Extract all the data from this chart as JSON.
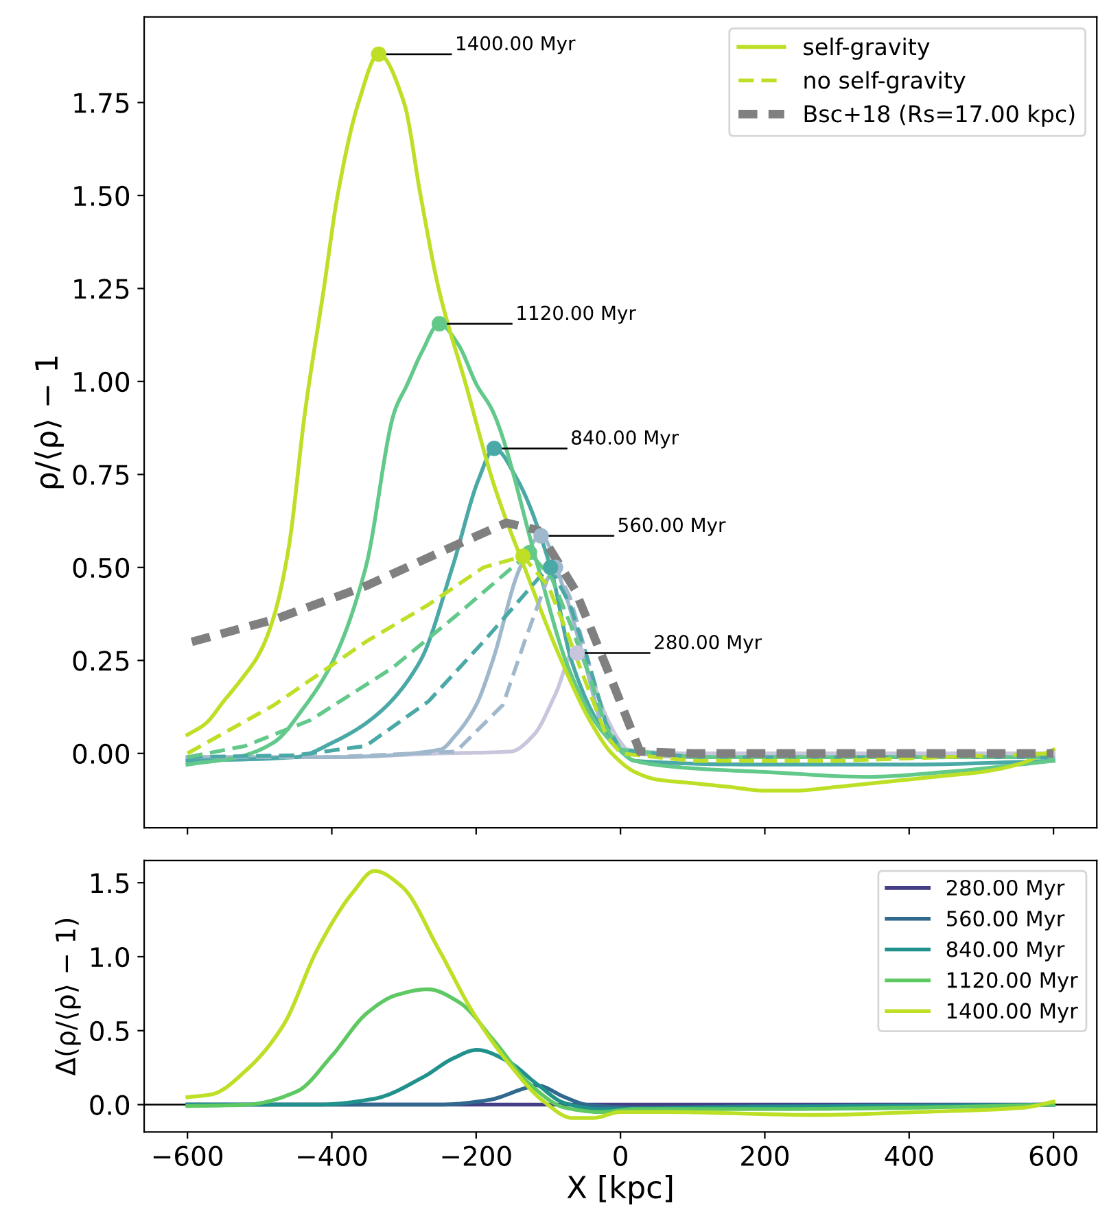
{
  "chart_data": [
    {
      "type": "line",
      "ylabel": "ρ/⟨ρ⟩ − 1",
      "xlim": [
        -660,
        660
      ],
      "ylim": [
        -0.2,
        1.98
      ],
      "xticks": [
        {
          "value": -600,
          "label": null
        },
        {
          "value": -400,
          "label": null
        },
        {
          "value": -200,
          "label": null
        },
        {
          "value": 0,
          "label": null
        },
        {
          "value": 200,
          "label": null
        },
        {
          "value": 400,
          "label": null
        },
        {
          "value": 600,
          "label": null
        }
      ],
      "yticks": [
        {
          "value": 0,
          "label": "0.00"
        },
        {
          "value": 0.25,
          "label": "0.25"
        },
        {
          "value": 0.5,
          "label": "0.50"
        },
        {
          "value": 0.75,
          "label": "0.75"
        },
        {
          "value": 1,
          "label": "1.00"
        },
        {
          "value": 1.25,
          "label": "1.25"
        },
        {
          "value": 1.5,
          "label": "1.50"
        },
        {
          "value": 1.75,
          "label": "1.75"
        }
      ],
      "tick_labels": "y",
      "grid": false,
      "legend": "top right",
      "marker": "none",
      "series": [
        {
          "color": "#c8c6dc",
          "line_style": "solid",
          "x": [
            -600,
            -400,
            -250,
            -152,
            -120,
            -90,
            -63,
            -40,
            -20,
            0,
            10,
            100,
            300,
            600
          ],
          "values": [
            -0.01,
            -0.01,
            0.0,
            0.005,
            0.05,
            0.16,
            0.28,
            0.2,
            0.1,
            0.03,
            0.01,
            0.0,
            0.0,
            0.0
          ]
        },
        {
          "color": "#a0b8cc",
          "line_style": "solid",
          "x": [
            -600,
            -400,
            -250,
            -228,
            -200,
            -177,
            -139,
            -110,
            -80,
            -50,
            -20,
            0,
            100,
            300,
            600
          ],
          "values": [
            -0.01,
            -0.01,
            0.01,
            0.05,
            0.13,
            0.25,
            0.5,
            0.585,
            0.45,
            0.25,
            0.05,
            0.01,
            -0.01,
            -0.01,
            -0.01
          ]
        },
        {
          "color": "#4aa9a6",
          "line_style": "solid",
          "x": [
            -600,
            -450,
            -398,
            -340,
            -277,
            -233,
            -196,
            -175,
            -144,
            -97,
            -68,
            -30,
            -9,
            20,
            200,
            400,
            600
          ],
          "values": [
            -0.02,
            -0.01,
            0.03,
            0.1,
            0.25,
            0.5,
            0.74,
            0.82,
            0.74,
            0.5,
            0.25,
            0.08,
            0.03,
            -0.02,
            -0.03,
            -0.03,
            -0.02
          ]
        },
        {
          "color": "#62c98a",
          "line_style": "solid",
          "x": [
            -600,
            -530,
            -480,
            -440,
            -398,
            -353,
            -313,
            -296,
            -275,
            -251,
            -225,
            -199,
            -177,
            -114,
            -76,
            -40,
            -12,
            20,
            100,
            200,
            342,
            450,
            600
          ],
          "values": [
            -0.03,
            -0.01,
            0.03,
            0.12,
            0.25,
            0.5,
            0.92,
            0.99,
            1.08,
            1.155,
            1.1,
            0.99,
            0.92,
            0.5,
            0.25,
            0.1,
            0.03,
            -0.02,
            -0.04,
            -0.05,
            -0.063,
            -0.05,
            -0.02
          ]
        },
        {
          "name": "self-gravity",
          "color": "#bddf26",
          "line_style": "solid",
          "x": [
            -600,
            -575,
            -550,
            -525,
            -500,
            -480,
            -460,
            -437,
            -411,
            -392,
            -363,
            -335,
            -300,
            -277,
            -252,
            -214,
            -175,
            -133,
            -82,
            -40,
            -12,
            20,
            50,
            100,
            150,
            200,
            241,
            300,
            350,
            400,
            450,
            500,
            550,
            600
          ],
          "values": [
            0.05,
            0.08,
            0.14,
            0.2,
            0.27,
            0.37,
            0.55,
            0.92,
            1.25,
            1.5,
            1.75,
            1.88,
            1.75,
            1.5,
            1.25,
            0.99,
            0.72,
            0.5,
            0.25,
            0.08,
            0.0,
            -0.05,
            -0.07,
            -0.08,
            -0.09,
            -0.1,
            -0.1,
            -0.09,
            -0.08,
            -0.07,
            -0.06,
            -0.05,
            -0.03,
            0.01
          ]
        },
        {
          "color": "#a0b8cc",
          "line_style": "dashed",
          "x": [
            -600,
            -400,
            -228,
            -163,
            -133,
            -101,
            -90,
            -70,
            -45,
            -20,
            0,
            100,
            300,
            600
          ],
          "values": [
            -0.01,
            -0.01,
            0.005,
            0.13,
            0.3,
            0.47,
            0.5,
            0.42,
            0.25,
            0.08,
            0.01,
            -0.01,
            -0.01,
            -0.01
          ]
        },
        {
          "color": "#4aa9a6",
          "line_style": "dashed",
          "x": [
            -600,
            -450,
            -353,
            -266,
            -190,
            -114,
            -97,
            -70,
            -45,
            -20,
            0,
            100,
            300,
            600
          ],
          "values": [
            -0.01,
            -0.005,
            0.02,
            0.14,
            0.3,
            0.47,
            0.5,
            0.4,
            0.25,
            0.08,
            0.01,
            -0.01,
            -0.01,
            -0.01
          ]
        },
        {
          "color": "#62c98a",
          "line_style": "dashed",
          "x": [
            -600,
            -520,
            -429,
            -316,
            -228,
            -126,
            -95,
            -70,
            -45,
            -20,
            0,
            100,
            300,
            600
          ],
          "values": [
            -0.01,
            0.02,
            0.09,
            0.23,
            0.37,
            0.54,
            0.47,
            0.35,
            0.22,
            0.07,
            0.01,
            -0.01,
            -0.01,
            -0.01
          ]
        },
        {
          "name": "no self-gravity",
          "color": "#bddf26",
          "line_style": "dashed",
          "x": [
            -600,
            -480,
            -353,
            -266,
            -190,
            -135,
            -100,
            -75,
            -50,
            -20,
            0,
            100,
            300,
            600
          ],
          "values": [
            0.0,
            0.13,
            0.3,
            0.4,
            0.5,
            0.53,
            0.45,
            0.33,
            0.2,
            0.05,
            0.0,
            -0.02,
            -0.02,
            0.0
          ]
        },
        {
          "name": "Bsc+18 (Rs=17.00 kpc)",
          "color": "#808080",
          "line_style": "dashed",
          "x": [
            -594,
            -480,
            -353,
            -228,
            -158,
            -114,
            -63,
            -19,
            27,
            100,
            300,
            600
          ],
          "values": [
            0.3,
            0.36,
            0.45,
            0.56,
            0.62,
            0.6,
            0.44,
            0.23,
            0.005,
            0.0,
            0.0,
            0.0
          ]
        },
        {
          "type": "scatter",
          "marker": "circle",
          "x": [
            -60,
            -110,
            -175,
            -251,
            -335,
            -90,
            -97,
            -126,
            -135
          ],
          "values": [
            0.27,
            0.585,
            0.82,
            1.155,
            1.88,
            0.5,
            0.5,
            0.54,
            0.53
          ],
          "colors": [
            "#c8c6dc",
            "#a0b8cc",
            "#4aa9a6",
            "#62c98a",
            "#bddf26",
            "#a0b8cc",
            "#4aa9a6",
            "#62c98a",
            "#bddf26"
          ]
        }
      ],
      "annotations": [
        {
          "text": "280.00 Myr",
          "x": -60,
          "y": 0.27
        },
        {
          "text": "560.00 Myr",
          "x": -110,
          "y": 0.585
        },
        {
          "text": "840.00 Myr",
          "x": -175,
          "y": 0.82
        },
        {
          "text": "1120.00 Myr",
          "x": -251,
          "y": 1.155
        },
        {
          "text": "1400.00 Myr",
          "x": -335,
          "y": 1.88
        }
      ]
    },
    {
      "type": "line",
      "xlabel": "X [kpc]",
      "ylabel": "Δ(ρ/⟨ρ⟩ − 1)",
      "xlim": [
        -660,
        660
      ],
      "ylim": [
        -0.185,
        1.65
      ],
      "xticks": [
        {
          "value": -600,
          "label": "−600"
        },
        {
          "value": -400,
          "label": "−400"
        },
        {
          "value": -200,
          "label": "−200"
        },
        0,
        200,
        400,
        600
      ],
      "yticks": [
        {
          "value": 0,
          "label": "0.0"
        },
        {
          "value": 0.5,
          "label": "0.5"
        },
        {
          "value": 1,
          "label": "1.0"
        },
        {
          "value": 1.5,
          "label": "1.5"
        }
      ],
      "grid": false,
      "legend": "top right",
      "marker": "none",
      "line_style": "solid",
      "ref_lines": [
        {
          "axis": "y",
          "value": 0,
          "color": "#000000"
        }
      ],
      "series": [
        {
          "name": "280.00 Myr",
          "color": "#433e85",
          "x": [
            -600,
            600
          ],
          "values": [
            0.0,
            0.0
          ]
        },
        {
          "name": "560.00 Myr",
          "color": "#31688e",
          "x": [
            -600,
            -250,
            -184,
            -126,
            -116,
            -77,
            -47,
            21,
            200,
            600
          ],
          "values": [
            0.0,
            0.0,
            0.03,
            0.12,
            0.13,
            0.05,
            0.0,
            -0.02,
            -0.01,
            0.0
          ]
        },
        {
          "name": "840.00 Myr",
          "color": "#21918c",
          "x": [
            -600,
            -419,
            -341,
            -272,
            -233,
            -199,
            -155,
            -116,
            -77,
            -28,
            119,
            600
          ],
          "values": [
            0.0,
            0.0,
            0.04,
            0.19,
            0.31,
            0.37,
            0.29,
            0.14,
            0.01,
            -0.03,
            -0.02,
            0.0
          ]
        },
        {
          "name": "1120.00 Myr",
          "color": "#5ec962",
          "x": [
            -600,
            -517,
            -448,
            -400,
            -351,
            -311,
            -267,
            -223,
            -175,
            -126,
            -77,
            -28,
            21,
            217,
            412,
            600
          ],
          "values": [
            -0.01,
            0.0,
            0.09,
            0.33,
            0.62,
            0.74,
            0.78,
            0.69,
            0.43,
            0.14,
            -0.02,
            -0.05,
            -0.03,
            -0.03,
            -0.02,
            0.0
          ]
        },
        {
          "name": "1400.00 Myr",
          "color": "#bddf26",
          "x": [
            -600,
            -566,
            -517,
            -468,
            -419,
            -370,
            -341,
            -302,
            -253,
            -204,
            -155,
            -106,
            -67,
            -38,
            0,
            70,
            168,
            266,
            412,
            559,
            600
          ],
          "values": [
            0.05,
            0.07,
            0.24,
            0.53,
            1.06,
            1.44,
            1.58,
            1.47,
            1.06,
            0.62,
            0.28,
            0.02,
            -0.09,
            -0.09,
            -0.05,
            -0.05,
            -0.06,
            -0.07,
            -0.05,
            -0.02,
            0.02
          ]
        }
      ]
    }
  ]
}
